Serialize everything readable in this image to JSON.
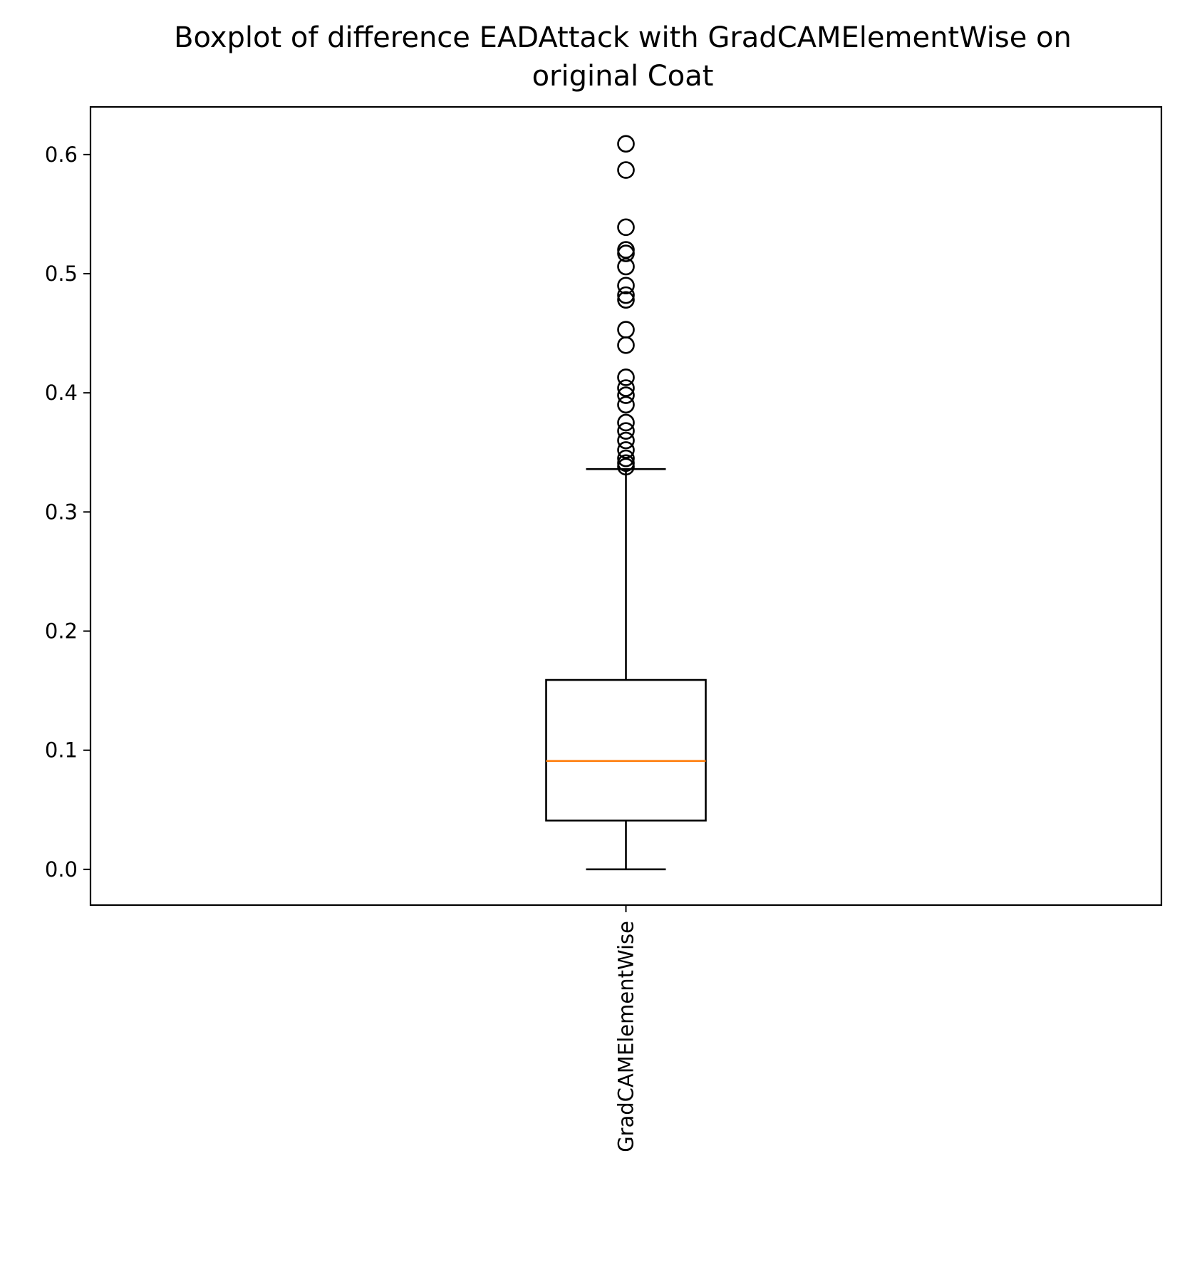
{
  "chart_data": {
    "type": "boxplot",
    "title_lines": [
      "Boxplot of difference EADAttack with GradCAMElementWise on",
      "original Coat"
    ],
    "categories": [
      "GradCAMElementWise"
    ],
    "xlabel": "",
    "ylabel": "",
    "ylim": [
      -0.03,
      0.64
    ],
    "yticks": [
      0.0,
      0.1,
      0.2,
      0.3,
      0.4,
      0.5,
      0.6
    ],
    "ytick_labels": [
      "0.0",
      "0.1",
      "0.2",
      "0.3",
      "0.4",
      "0.5",
      "0.6"
    ],
    "grid": false,
    "series": [
      {
        "category": "GradCAMElementWise",
        "whisker_low": 0.0,
        "q1": 0.041,
        "median": 0.091,
        "q3": 0.159,
        "whisker_high": 0.336,
        "outliers": [
          0.338,
          0.341,
          0.345,
          0.352,
          0.36,
          0.368,
          0.375,
          0.39,
          0.398,
          0.404,
          0.413,
          0.44,
          0.453,
          0.478,
          0.482,
          0.49,
          0.506,
          0.517,
          0.52,
          0.539,
          0.587,
          0.609
        ]
      }
    ],
    "colors": {
      "box": "#000000",
      "median": "#ff7f0e",
      "outlier": "#000000"
    }
  }
}
